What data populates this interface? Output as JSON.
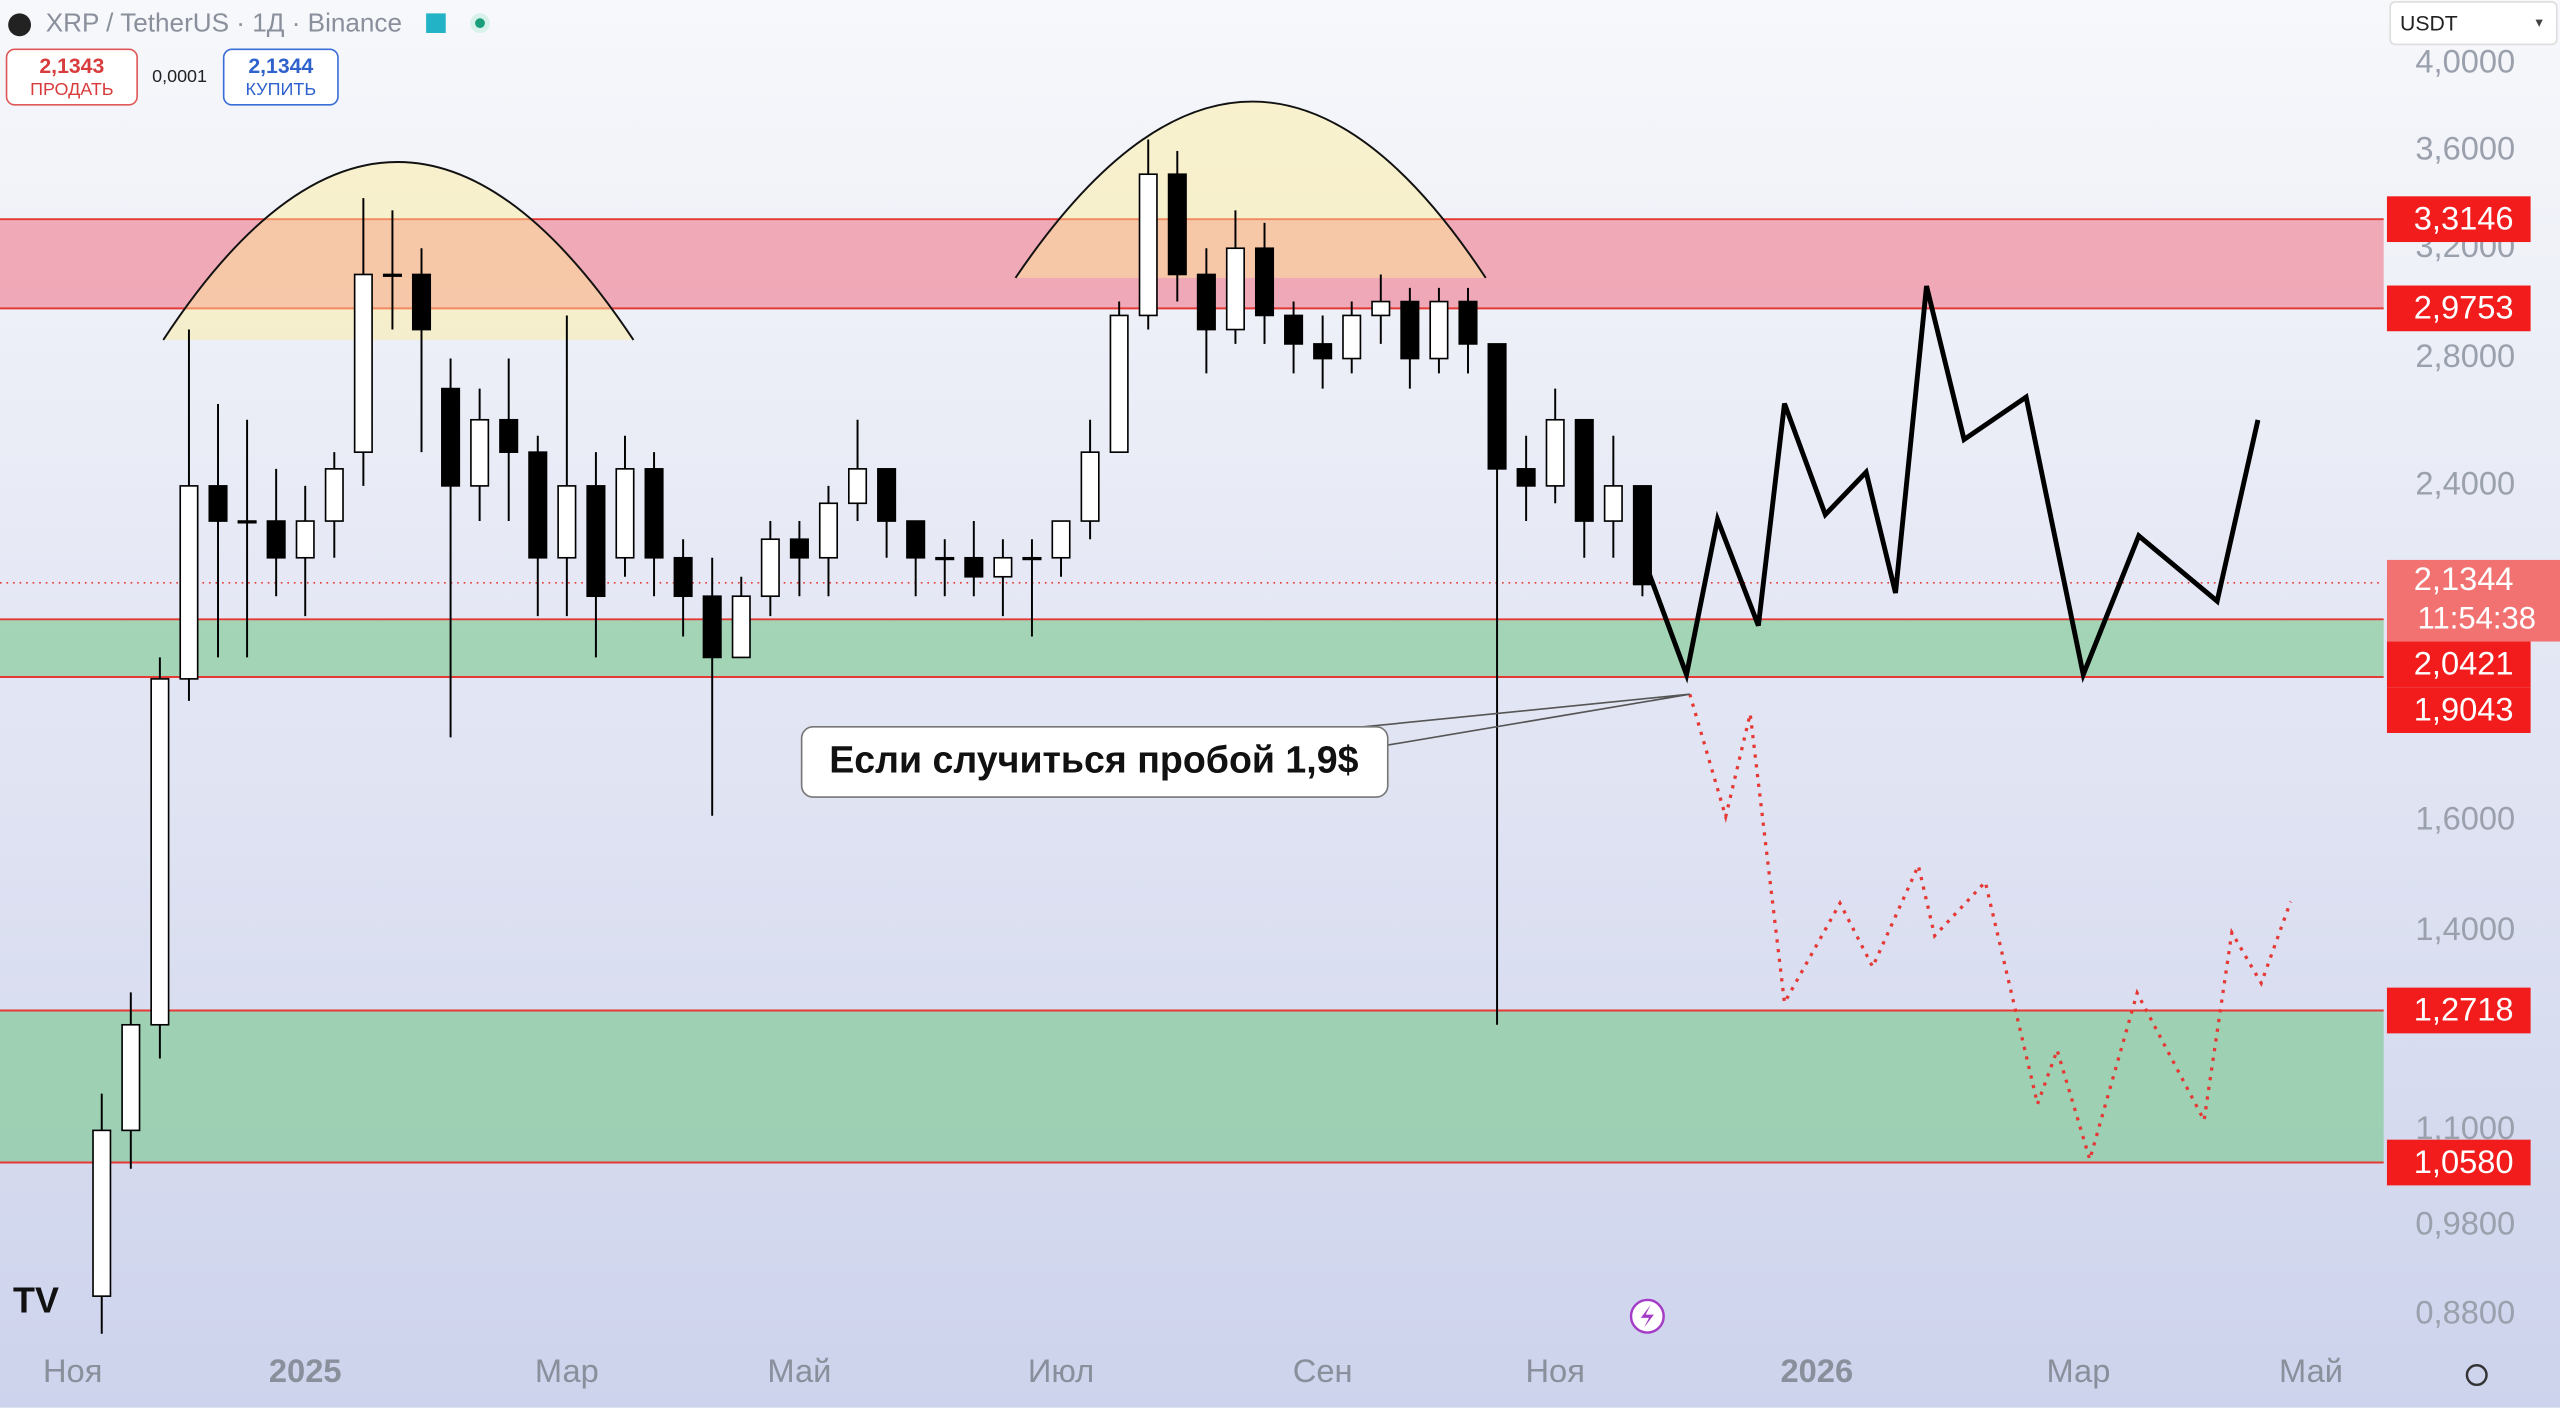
{
  "header": {
    "symbol": "XRP / TetherUS · 1Д · Binance",
    "sell_price": "2,1343",
    "sell_label": "ПРОДАТЬ",
    "spread": "0,0001",
    "buy_price": "2,1344",
    "buy_label": "КУПИТЬ",
    "currency": "USDT"
  },
  "chart_data": {
    "type": "candlestick",
    "categories": [
      null,
      null,
      "Ноя",
      null,
      null,
      null,
      null,
      null,
      null,
      null,
      "2025",
      null,
      null,
      null,
      null,
      null,
      null,
      null,
      null,
      "Мар",
      null,
      null,
      null,
      null,
      null,
      null,
      null,
      "Май",
      null,
      null,
      null,
      null,
      null,
      null,
      null,
      null,
      "Июл",
      null,
      null,
      null,
      null,
      null,
      null,
      null,
      null,
      "Сен",
      null,
      null,
      null,
      null,
      null,
      null,
      null,
      "Ноя",
      null,
      null,
      null,
      null,
      null,
      null,
      null,
      null,
      "2026",
      null,
      null,
      null,
      null,
      null,
      null,
      null,
      null,
      "Мар",
      null,
      null,
      null,
      null,
      null,
      null,
      null,
      "Май",
      null,
      null
    ],
    "open": [
      null,
      null,
      null,
      0.9,
      1.1,
      1.25,
      1.9,
      2.4,
      2.3,
      2.3,
      2.2,
      2.3,
      2.5,
      3.1,
      3.1,
      2.7,
      2.4,
      2.6,
      2.5,
      2.2,
      2.4,
      2.2,
      2.45,
      2.2,
      2.1,
      1.95,
      2.1,
      2.25,
      2.2,
      2.35,
      2.45,
      2.3,
      2.2,
      2.2,
      2.15,
      2.2,
      2.2,
      2.3,
      2.5,
      2.95,
      3.5,
      3.1,
      2.9,
      3.2,
      2.95,
      2.85,
      2.8,
      2.95,
      3.0,
      2.8,
      3.0,
      2.85,
      2.45,
      2.4,
      2.6,
      2.3,
      2.4,
      null,
      null,
      null,
      null,
      null,
      null,
      null,
      null,
      null,
      null,
      null,
      null,
      null,
      null,
      null,
      null,
      null,
      null,
      null,
      null,
      null,
      null,
      null,
      null,
      null
    ],
    "high": [
      null,
      null,
      null,
      1.15,
      1.3,
      1.95,
      2.9,
      2.65,
      2.6,
      2.45,
      2.4,
      2.5,
      3.4,
      3.35,
      3.2,
      2.8,
      2.7,
      2.8,
      2.55,
      2.95,
      2.5,
      2.55,
      2.5,
      2.25,
      2.2,
      2.15,
      2.3,
      2.3,
      2.4,
      2.6,
      2.45,
      2.3,
      2.25,
      2.3,
      2.25,
      2.25,
      2.3,
      2.6,
      3.0,
      3.65,
      3.6,
      3.2,
      3.35,
      3.3,
      3.0,
      2.95,
      3.0,
      3.1,
      3.05,
      3.05,
      3.05,
      2.85,
      2.55,
      2.7,
      2.6,
      2.55,
      2.4,
      null,
      null,
      null,
      null,
      null,
      null,
      null,
      null,
      null,
      null,
      null,
      null,
      null,
      null,
      null,
      null,
      null,
      null,
      null,
      null,
      null,
      null,
      null,
      null,
      null
    ],
    "low": [
      null,
      null,
      null,
      0.86,
      1.05,
      1.2,
      1.85,
      1.95,
      1.95,
      2.1,
      2.05,
      2.2,
      2.4,
      2.9,
      2.5,
      1.77,
      2.3,
      2.3,
      2.05,
      2.05,
      1.95,
      2.15,
      2.1,
      2.0,
      1.61,
      1.95,
      2.05,
      2.1,
      2.1,
      2.3,
      2.2,
      2.1,
      2.1,
      2.1,
      2.05,
      2.0,
      2.15,
      2.25,
      2.5,
      2.9,
      3.0,
      2.75,
      2.85,
      2.85,
      2.75,
      2.7,
      2.75,
      2.85,
      2.7,
      2.75,
      2.75,
      1.25,
      2.3,
      2.35,
      2.2,
      2.2,
      2.1,
      null,
      null,
      null,
      null,
      null,
      null,
      null,
      null,
      null,
      null,
      null,
      null,
      null,
      null,
      null,
      null,
      null,
      null,
      null,
      null,
      null,
      null,
      null,
      null,
      null
    ],
    "close": [
      null,
      null,
      null,
      1.1,
      1.25,
      1.9,
      2.4,
      2.3,
      2.3,
      2.2,
      2.3,
      2.45,
      3.1,
      3.1,
      2.9,
      2.4,
      2.6,
      2.5,
      2.2,
      2.4,
      2.1,
      2.45,
      2.2,
      2.1,
      1.95,
      2.1,
      2.25,
      2.2,
      2.35,
      2.45,
      2.3,
      2.2,
      2.2,
      2.15,
      2.2,
      2.2,
      2.3,
      2.5,
      2.95,
      3.5,
      3.1,
      2.9,
      3.2,
      2.95,
      2.85,
      2.8,
      2.95,
      3.0,
      2.8,
      3.0,
      2.85,
      2.45,
      2.4,
      2.6,
      2.3,
      2.4,
      2.13,
      null,
      null,
      null,
      null,
      null,
      null,
      null,
      null,
      null,
      null,
      null,
      null,
      null,
      null,
      null,
      null,
      null,
      null,
      null,
      null,
      null,
      null,
      null,
      null,
      null
    ],
    "up_color": "#ffffff",
    "down_color": "#000000",
    "log_scale": true,
    "ylim": [
      0.846,
      4.32
    ],
    "yticks": [
      {
        "value": 0.88,
        "label": "0,8800"
      },
      {
        "value": 0.98,
        "label": "0,9800"
      },
      {
        "value": 1.1,
        "label": "1,1000"
      },
      {
        "value": 1.4,
        "label": "1,4000"
      },
      {
        "value": 1.6,
        "label": "1,6000"
      },
      {
        "value": 2.4,
        "label": "2,4000"
      },
      {
        "value": 2.8,
        "label": "2,8000"
      },
      {
        "value": 3.2,
        "label": "3,2000"
      },
      {
        "value": 3.6,
        "label": "3,6000"
      },
      {
        "value": 4.0,
        "label": "4,0000"
      }
    ],
    "levels": [
      {
        "value": 3.3146,
        "label": "3,3146"
      },
      {
        "value": 2.9753,
        "label": "2,9753"
      },
      {
        "value": 2.0421,
        "label": "2,0421"
      },
      {
        "value": 1.9043,
        "label": "1,9043"
      },
      {
        "value": 1.2718,
        "label": "1,2718"
      },
      {
        "value": 1.058,
        "label": "1,0580"
      }
    ],
    "last_price": {
      "value": 2.1344,
      "label": "2,1344",
      "countdown": "11:54:38"
    },
    "annotation": "Если случиться пробой 1,9$"
  }
}
